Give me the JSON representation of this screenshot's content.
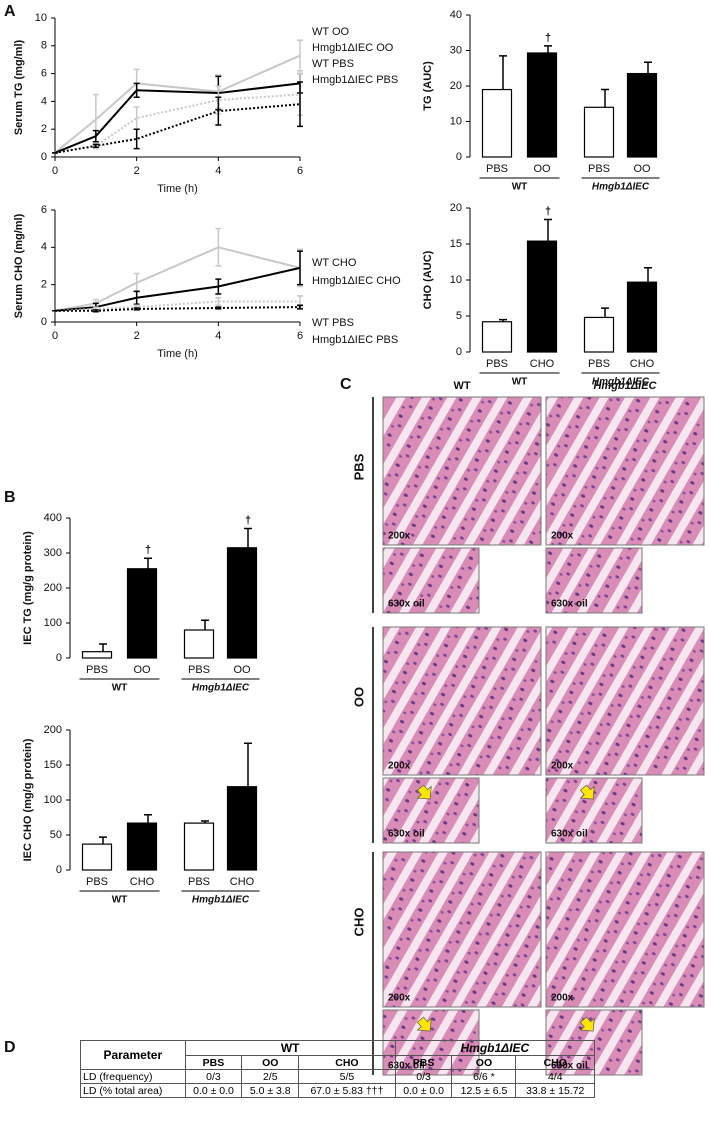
{
  "panels": [
    "A",
    "B",
    "C",
    "D"
  ],
  "chart_data": [
    {
      "type": "line",
      "ylabel": "Serum TG (mg/ml)",
      "xlabel": "Time (h)",
      "x": [
        0,
        1,
        2,
        4,
        6
      ],
      "xlim": [
        0,
        6
      ],
      "xticks": [
        0,
        2,
        4,
        6
      ],
      "ylim": [
        0,
        10
      ],
      "yticks": [
        0,
        2,
        4,
        6,
        8,
        10
      ],
      "series": [
        {
          "name": "WT OO",
          "color": "#c8c8c8",
          "line_style": "solid",
          "values": [
            0.3,
            2.7,
            5.3,
            4.7,
            7.3
          ],
          "errors": [
            0,
            1.8,
            1.0,
            1.2,
            1.1
          ]
        },
        {
          "name": "Hmgb1ΔIEC OO",
          "color": "#000000",
          "line_style": "solid",
          "values": [
            0.3,
            1.5,
            4.8,
            4.6,
            5.3
          ],
          "errors": [
            0,
            0.4,
            0.5,
            1.2,
            0.7
          ]
        },
        {
          "name": "WT PBS",
          "color": "#c8c8c8",
          "line_style": "dotted",
          "values": [
            0.3,
            0.8,
            2.8,
            4.1,
            4.5
          ],
          "errors": [
            0,
            0.2,
            0.8,
            1.0,
            1.5
          ]
        },
        {
          "name": "Hmgb1ΔIEC PBS",
          "color": "#000000",
          "line_style": "dotted",
          "values": [
            0.3,
            0.8,
            1.3,
            3.3,
            3.8
          ],
          "errors": [
            0,
            0.1,
            0.7,
            1.0,
            1.6
          ]
        }
      ]
    },
    {
      "type": "bar",
      "ylabel": "TG (AUC)",
      "categories": [
        "PBS",
        "OO",
        "PBS",
        "OO"
      ],
      "groups": [
        "WT",
        "Hmgb1ΔIEC"
      ],
      "values": [
        19,
        29.3,
        14,
        23.5
      ],
      "errors": [
        9.5,
        2,
        5,
        3.2
      ],
      "significance": [
        null,
        "†",
        null,
        null
      ],
      "colors": [
        "#ffffff",
        "#000000",
        "#ffffff",
        "#000000"
      ],
      "ylim": [
        0,
        40
      ],
      "yticks": [
        0,
        10,
        20,
        30,
        40
      ]
    },
    {
      "type": "line",
      "ylabel": "Serum CHO (mg/ml)",
      "xlabel": "Time (h)",
      "x": [
        0,
        1,
        2,
        4,
        6
      ],
      "xlim": [
        0,
        6
      ],
      "xticks": [
        0,
        2,
        4,
        6
      ],
      "ylim": [
        0,
        6
      ],
      "yticks": [
        0,
        2,
        4,
        6
      ],
      "series": [
        {
          "name": "WT CHO",
          "color": "#c8c8c8",
          "line_style": "solid",
          "values": [
            0.6,
            1.0,
            2.1,
            4.0,
            2.9
          ],
          "errors": [
            0,
            0.2,
            0.5,
            1.0,
            1.0
          ]
        },
        {
          "name": "Hmgb1ΔIEC CHO",
          "color": "#000000",
          "line_style": "solid",
          "values": [
            0.6,
            0.8,
            1.3,
            1.9,
            2.9
          ],
          "errors": [
            0,
            0.2,
            0.35,
            0.4,
            0.9
          ]
        },
        {
          "name": "WT PBS",
          "color": "#c8c8c8",
          "line_style": "dotted",
          "values": [
            0.6,
            0.7,
            0.8,
            1.1,
            1.1
          ],
          "errors": [
            0,
            0.1,
            0.1,
            0.2,
            0.3
          ]
        },
        {
          "name": "Hmgb1ΔIEC PBS",
          "color": "#000000",
          "line_style": "dotted",
          "values": [
            0.6,
            0.6,
            0.7,
            0.75,
            0.8
          ],
          "errors": [
            0,
            0.05,
            0.05,
            0.05,
            0.1
          ]
        }
      ]
    },
    {
      "type": "bar",
      "ylabel": "CHO (AUC)",
      "categories": [
        "PBS",
        "CHO",
        "PBS",
        "CHO"
      ],
      "groups": [
        "WT",
        "Hmgb1ΔIEC"
      ],
      "values": [
        4.2,
        15.4,
        4.8,
        9.7
      ],
      "errors": [
        0.3,
        3,
        1.3,
        2
      ],
      "significance": [
        null,
        "†",
        null,
        null
      ],
      "colors": [
        "#ffffff",
        "#000000",
        "#ffffff",
        "#000000"
      ],
      "ylim": [
        0,
        20
      ],
      "yticks": [
        0,
        5,
        10,
        15,
        20
      ]
    },
    {
      "type": "bar",
      "ylabel": "IEC TG (mg/g protein)",
      "categories": [
        "PBS",
        "OO",
        "PBS",
        "OO"
      ],
      "groups": [
        "WT",
        "Hmgb1ΔIEC"
      ],
      "values": [
        18,
        255,
        80,
        315
      ],
      "errors": [
        22,
        30,
        28,
        55
      ],
      "significance": [
        null,
        "†",
        null,
        "†"
      ],
      "colors": [
        "#ffffff",
        "#000000",
        "#ffffff",
        "#000000"
      ],
      "ylim": [
        0,
        400
      ],
      "yticks": [
        0,
        100,
        200,
        300,
        400
      ]
    },
    {
      "type": "bar",
      "ylabel": "IEC CHO (mg/g protein)",
      "categories": [
        "PBS",
        "CHO",
        "PBS",
        "CHO"
      ],
      "groups": [
        "WT",
        "Hmgb1ΔIEC"
      ],
      "values": [
        37,
        67,
        67,
        119
      ],
      "errors": [
        10,
        12,
        3,
        62
      ],
      "significance": [
        null,
        null,
        null,
        null
      ],
      "colors": [
        "#ffffff",
        "#000000",
        "#ffffff",
        "#000000"
      ],
      "ylim": [
        0,
        200
      ],
      "yticks": [
        0,
        50,
        100,
        150,
        200
      ]
    }
  ],
  "histology": {
    "columns": [
      "WT",
      "Hmgb1ΔIEC"
    ],
    "rows": [
      "PBS",
      "OO",
      "CHO"
    ],
    "magnifications": [
      "200x",
      "630x oil"
    ]
  },
  "table": {
    "header": [
      "Parameter",
      "WT",
      "Hmgb1ΔIEC"
    ],
    "subheader": [
      "PBS",
      "OO",
      "CHO",
      "PBS",
      "OO",
      "CHO"
    ],
    "rows": [
      [
        "LD (frequency)",
        "0/3",
        "2/5",
        "5/5",
        "0/3",
        "6/6 *",
        "4/4"
      ],
      [
        "LD (% total area)",
        "0.0 ± 0.0",
        "5.0 ± 3.8",
        "67.0 ± 5.83 †††",
        "0.0 ± 0.0",
        "12.5 ± 6.5",
        "33.8 ± 15.72"
      ]
    ]
  }
}
